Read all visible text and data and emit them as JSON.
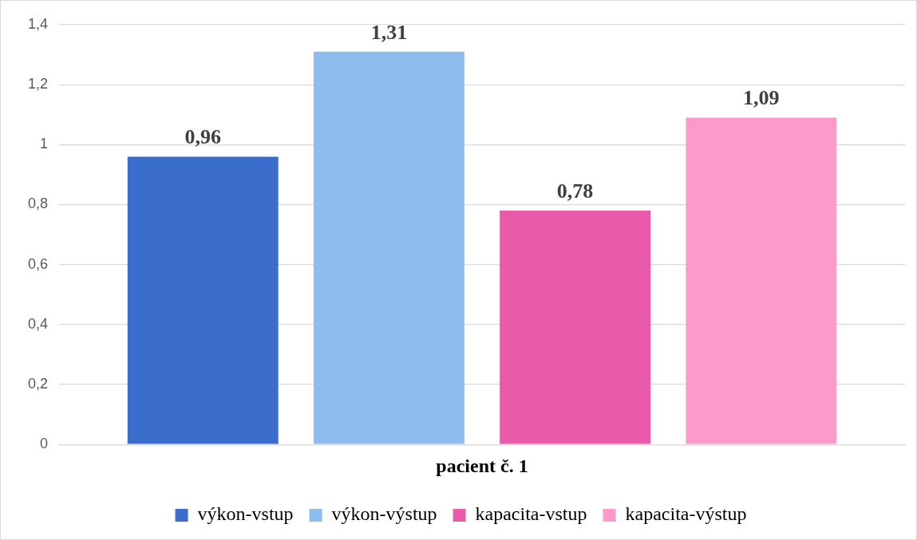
{
  "chart_data": {
    "type": "bar",
    "categories": [
      "pacient č. 1"
    ],
    "series": [
      {
        "name": "výkon-vstup",
        "color": "#3b6dcc",
        "values": [
          0.96
        ],
        "value_labels": [
          "0,96"
        ]
      },
      {
        "name": "výkon-výstup",
        "color": "#8dbdee",
        "values": [
          1.31
        ],
        "value_labels": [
          "1,31"
        ]
      },
      {
        "name": "kapacita-vstup",
        "color": "#e95ba8",
        "values": [
          0.78
        ],
        "value_labels": [
          "0,78"
        ]
      },
      {
        "name": "kapacita-výstup",
        "color": "#fe99cb",
        "values": [
          1.09
        ],
        "value_labels": [
          "1,09"
        ]
      }
    ],
    "ylim": [
      0,
      1.4
    ],
    "yticks": [
      0,
      {
        "value": 0.2,
        "label": "0,2"
      },
      {
        "value": 0.4,
        "label": "0,4"
      },
      {
        "value": 0.6,
        "label": "0,6"
      },
      {
        "value": 0.8,
        "label": "0,8"
      },
      1,
      {
        "value": 1.2,
        "label": "1,2"
      },
      {
        "value": 1.4,
        "label": "1,4"
      }
    ],
    "grid": "y",
    "legend": "bottom"
  }
}
